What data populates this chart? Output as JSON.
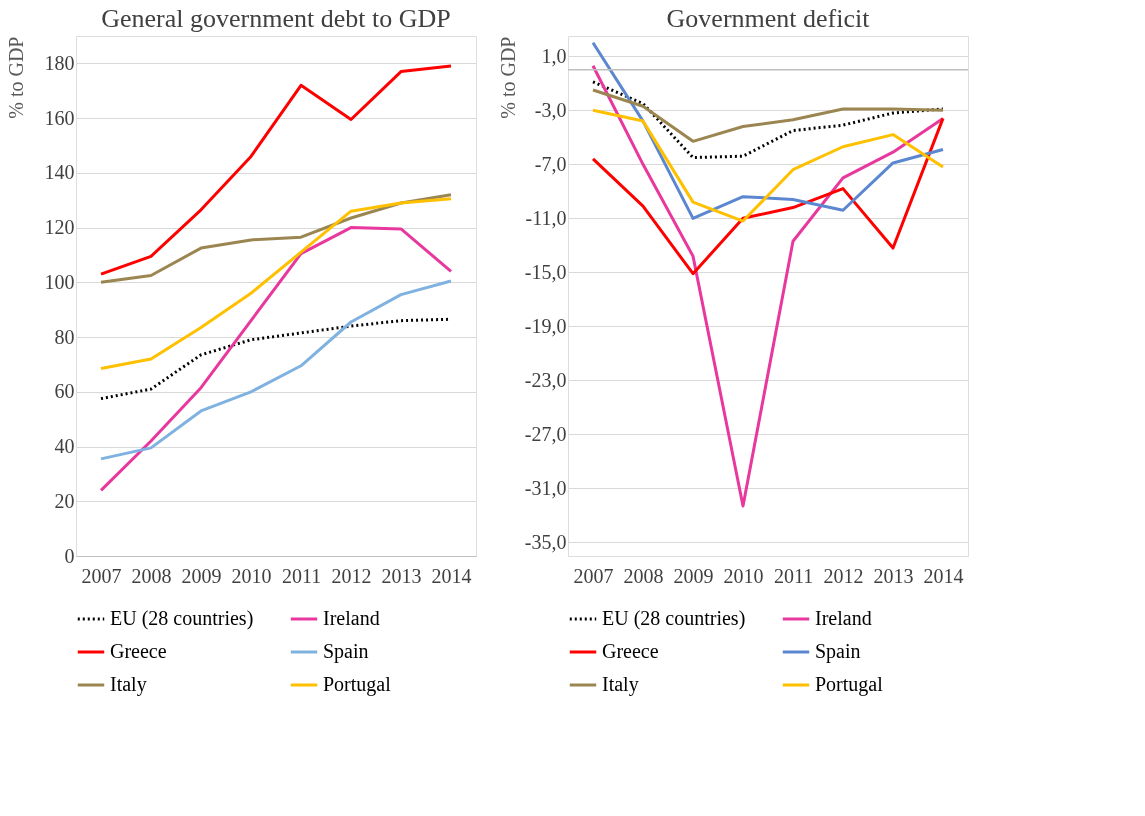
{
  "chart_data": [
    {
      "type": "line",
      "title": "General government debt to GDP",
      "ylabel": "% to GDP",
      "categories": [
        "2007",
        "2008",
        "2009",
        "2010",
        "2011",
        "2012",
        "2013",
        "2014"
      ],
      "series": [
        {
          "name": "EU (28 countries)",
          "color": "#000000",
          "line_style": "dotted",
          "values": [
            57.5,
            61,
            73.5,
            79,
            81.5,
            84,
            86,
            86.5
          ]
        },
        {
          "name": "Ireland",
          "color": "#e8389e",
          "values": [
            24,
            42,
            61.5,
            86,
            110.5,
            120,
            119.5,
            104
          ]
        },
        {
          "name": "Greece",
          "color": "#ff0000",
          "values": [
            103,
            109.5,
            126.5,
            146,
            172,
            159.5,
            177,
            179
          ]
        },
        {
          "name": "Spain",
          "color": "#7fb2e0",
          "values": [
            35.5,
            39.5,
            53,
            60,
            69.5,
            85.5,
            95.5,
            100.5
          ]
        },
        {
          "name": "Italy",
          "color": "#9b8651",
          "values": [
            100,
            102.5,
            112.5,
            115.5,
            116.5,
            123.5,
            129,
            132
          ]
        },
        {
          "name": "Portugal",
          "color": "#ffc000",
          "values": [
            68.5,
            72,
            83.5,
            96,
            111,
            126,
            129,
            130.5
          ]
        }
      ],
      "ylim": [
        0,
        190
      ],
      "yticks": [
        0,
        20,
        40,
        60,
        80,
        100,
        120,
        140,
        160,
        180
      ],
      "grid": "y",
      "legend": "bottom",
      "line_style": "solid",
      "marker": "none"
    },
    {
      "type": "line",
      "title": "Government deficit",
      "ylabel": "% to GDP",
      "categories": [
        "2007",
        "2008",
        "2009",
        "2010",
        "2011",
        "2012",
        "2013",
        "2014"
      ],
      "series": [
        {
          "name": "EU (28 countries)",
          "color": "#000000",
          "line_style": "dotted",
          "values": [
            -0.9,
            -2.5,
            -6.5,
            -6.4,
            -4.5,
            -4.1,
            -3.2,
            -2.9
          ]
        },
        {
          "name": "Ireland",
          "color": "#e8389e",
          "values": [
            0.3,
            -7.0,
            -13.8,
            -32.3,
            -12.7,
            -8.0,
            -6.1,
            -3.6
          ]
        },
        {
          "name": "Greece",
          "color": "#ff0000",
          "values": [
            -6.6,
            -10.1,
            -15.1,
            -11.0,
            -10.2,
            -8.8,
            -13.2,
            -3.6
          ]
        },
        {
          "name": "Spain",
          "color": "#5b87d0",
          "values": [
            2.0,
            -3.8,
            -11.0,
            -9.4,
            -9.6,
            -10.4,
            -6.9,
            -5.9
          ]
        },
        {
          "name": "Italy",
          "color": "#9b8651",
          "values": [
            -1.5,
            -2.7,
            -5.3,
            -4.2,
            -3.7,
            -2.9,
            -2.9,
            -3.0
          ]
        },
        {
          "name": "Portugal",
          "color": "#ffc000",
          "values": [
            -3.0,
            -3.8,
            -9.8,
            -11.2,
            -7.4,
            -5.7,
            -4.8,
            -7.2
          ]
        }
      ],
      "ylim": [
        -36,
        2.5
      ],
      "yticks": [
        {
          "value": 1,
          "label": "1,0"
        },
        {
          "value": -3,
          "label": "-3,0"
        },
        {
          "value": -7,
          "label": "-7,0"
        },
        {
          "value": -11,
          "label": "-11,0"
        },
        {
          "value": -15,
          "label": "-15,0"
        },
        {
          "value": -19,
          "label": "-19,0"
        },
        {
          "value": -23,
          "label": "-23,0"
        },
        {
          "value": -27,
          "label": "-27,0"
        },
        {
          "value": -31,
          "label": "-31,0"
        },
        {
          "value": -35,
          "label": "-35,0"
        }
      ],
      "ref_lines": [
        {
          "axis": "y",
          "value": 0,
          "color": "#bfbfbf"
        }
      ],
      "grid": "y",
      "legend": "bottom",
      "line_style": "solid",
      "marker": "none"
    }
  ]
}
